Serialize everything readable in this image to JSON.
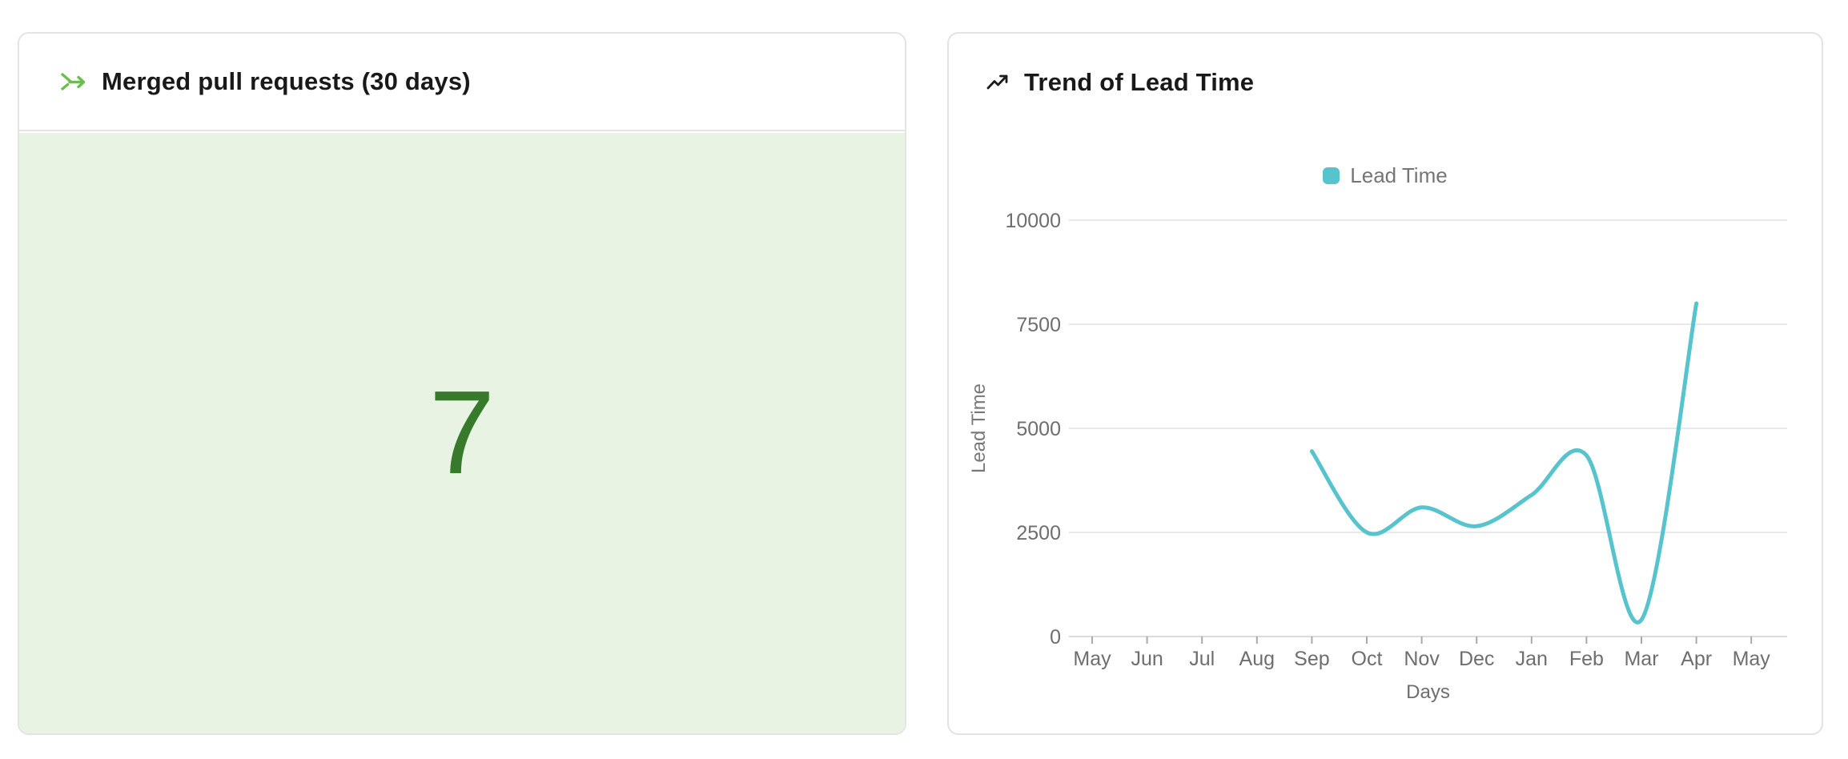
{
  "cards": {
    "merged_pull_requests": {
      "title": "Merged pull requests (30 days)",
      "value": "7",
      "value_color": "#377a2c",
      "panel_bg": "#e9f3e4",
      "icon": "git-merge-icon",
      "icon_color": "#6abf4b"
    },
    "trend_of_lead_time": {
      "title": "Trend of Lead Time",
      "icon": "trend-up-icon",
      "icon_color": "#1b1b1b"
    }
  },
  "chart_data": {
    "type": "line",
    "title": "Trend of Lead Time",
    "categories": [
      "May",
      "Jun",
      "Jul",
      "Aug",
      "Sep",
      "Oct",
      "Nov",
      "Dec",
      "Jan",
      "Feb",
      "Mar",
      "Apr",
      "May"
    ],
    "series": [
      {
        "name": "Lead Time",
        "color": "#57c3cd",
        "values": [
          null,
          null,
          null,
          null,
          4450,
          2500,
          3100,
          2650,
          3400,
          4350,
          400,
          8000,
          null
        ]
      }
    ],
    "xlabel": "Days",
    "ylabel": "Lead Time",
    "ylim": [
      0,
      10000
    ],
    "yticks": [
      0,
      2500,
      5000,
      7500,
      10000
    ],
    "grid": "horizontal",
    "legend_position": "top-center",
    "smooth": true,
    "axis_text_color": "#6e6e6e",
    "gridline_color": "#e9e9e9",
    "axis_line_color": "#dcdcdc"
  }
}
